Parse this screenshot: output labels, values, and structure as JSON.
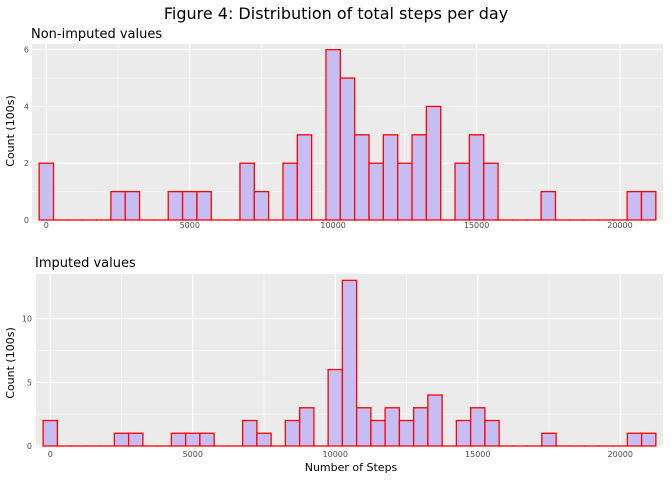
{
  "figure_title": "Figure 4: Distribution of total steps per day",
  "colors": {
    "panel_bg": "#ebebeb",
    "grid_major": "#ffffff",
    "bar_fill": "#c6bdf2",
    "bar_stroke": "#ff0000",
    "tick_text": "#4d4d4d"
  },
  "chart_data": [
    {
      "type": "bar",
      "title": "Non-imputed values",
      "xlabel": "",
      "ylabel": "Count (100s)",
      "bin_width": 500,
      "xlim": [
        -500,
        21500
      ],
      "ylim": [
        0,
        6.2
      ],
      "x_ticks": [
        0,
        5000,
        10000,
        15000,
        20000
      ],
      "y_ticks": [
        0,
        2,
        4,
        6
      ],
      "grid": true,
      "bins": [
        {
          "x": 0,
          "y": 2
        },
        {
          "x": 500,
          "y": 0
        },
        {
          "x": 1000,
          "y": 0
        },
        {
          "x": 1500,
          "y": 0
        },
        {
          "x": 2000,
          "y": 0
        },
        {
          "x": 2500,
          "y": 1
        },
        {
          "x": 3000,
          "y": 1
        },
        {
          "x": 3500,
          "y": 0
        },
        {
          "x": 4000,
          "y": 0
        },
        {
          "x": 4500,
          "y": 1
        },
        {
          "x": 5000,
          "y": 1
        },
        {
          "x": 5500,
          "y": 1
        },
        {
          "x": 6000,
          "y": 0
        },
        {
          "x": 6500,
          "y": 0
        },
        {
          "x": 7000,
          "y": 2
        },
        {
          "x": 7500,
          "y": 1
        },
        {
          "x": 8000,
          "y": 0
        },
        {
          "x": 8500,
          "y": 2
        },
        {
          "x": 9000,
          "y": 3
        },
        {
          "x": 9500,
          "y": 0
        },
        {
          "x": 10000,
          "y": 6
        },
        {
          "x": 10500,
          "y": 5
        },
        {
          "x": 11000,
          "y": 3
        },
        {
          "x": 11500,
          "y": 2
        },
        {
          "x": 12000,
          "y": 3
        },
        {
          "x": 12500,
          "y": 2
        },
        {
          "x": 13000,
          "y": 3
        },
        {
          "x": 13500,
          "y": 4
        },
        {
          "x": 14000,
          "y": 0
        },
        {
          "x": 14500,
          "y": 2
        },
        {
          "x": 15000,
          "y": 3
        },
        {
          "x": 15500,
          "y": 2
        },
        {
          "x": 16000,
          "y": 0
        },
        {
          "x": 16500,
          "y": 0
        },
        {
          "x": 17000,
          "y": 0
        },
        {
          "x": 17500,
          "y": 1
        },
        {
          "x": 18000,
          "y": 0
        },
        {
          "x": 18500,
          "y": 0
        },
        {
          "x": 19000,
          "y": 0
        },
        {
          "x": 19500,
          "y": 0
        },
        {
          "x": 20000,
          "y": 0
        },
        {
          "x": 20500,
          "y": 1
        },
        {
          "x": 21000,
          "y": 1
        }
      ]
    },
    {
      "type": "bar",
      "title": "Imputed values",
      "xlabel": "Number of Steps",
      "ylabel": "Count (100s)",
      "bin_width": 500,
      "xlim": [
        -500,
        21500
      ],
      "ylim": [
        0,
        13.5
      ],
      "x_ticks": [
        0,
        5000,
        10000,
        15000,
        20000
      ],
      "y_ticks": [
        0,
        5,
        10
      ],
      "grid": true,
      "bins": [
        {
          "x": 0,
          "y": 2
        },
        {
          "x": 500,
          "y": 0
        },
        {
          "x": 1000,
          "y": 0
        },
        {
          "x": 1500,
          "y": 0
        },
        {
          "x": 2000,
          "y": 0
        },
        {
          "x": 2500,
          "y": 1
        },
        {
          "x": 3000,
          "y": 1
        },
        {
          "x": 3500,
          "y": 0
        },
        {
          "x": 4000,
          "y": 0
        },
        {
          "x": 4500,
          "y": 1
        },
        {
          "x": 5000,
          "y": 1
        },
        {
          "x": 5500,
          "y": 1
        },
        {
          "x": 6000,
          "y": 0
        },
        {
          "x": 6500,
          "y": 0
        },
        {
          "x": 7000,
          "y": 2
        },
        {
          "x": 7500,
          "y": 1
        },
        {
          "x": 8000,
          "y": 0
        },
        {
          "x": 8500,
          "y": 2
        },
        {
          "x": 9000,
          "y": 3
        },
        {
          "x": 9500,
          "y": 0
        },
        {
          "x": 10000,
          "y": 6
        },
        {
          "x": 10500,
          "y": 13
        },
        {
          "x": 11000,
          "y": 3
        },
        {
          "x": 11500,
          "y": 2
        },
        {
          "x": 12000,
          "y": 3
        },
        {
          "x": 12500,
          "y": 2
        },
        {
          "x": 13000,
          "y": 3
        },
        {
          "x": 13500,
          "y": 4
        },
        {
          "x": 14000,
          "y": 0
        },
        {
          "x": 14500,
          "y": 2
        },
        {
          "x": 15000,
          "y": 3
        },
        {
          "x": 15500,
          "y": 2
        },
        {
          "x": 16000,
          "y": 0
        },
        {
          "x": 16500,
          "y": 0
        },
        {
          "x": 17000,
          "y": 0
        },
        {
          "x": 17500,
          "y": 1
        },
        {
          "x": 18000,
          "y": 0
        },
        {
          "x": 18500,
          "y": 0
        },
        {
          "x": 19000,
          "y": 0
        },
        {
          "x": 19500,
          "y": 0
        },
        {
          "x": 20000,
          "y": 0
        },
        {
          "x": 20500,
          "y": 1
        },
        {
          "x": 21000,
          "y": 1
        }
      ]
    }
  ]
}
